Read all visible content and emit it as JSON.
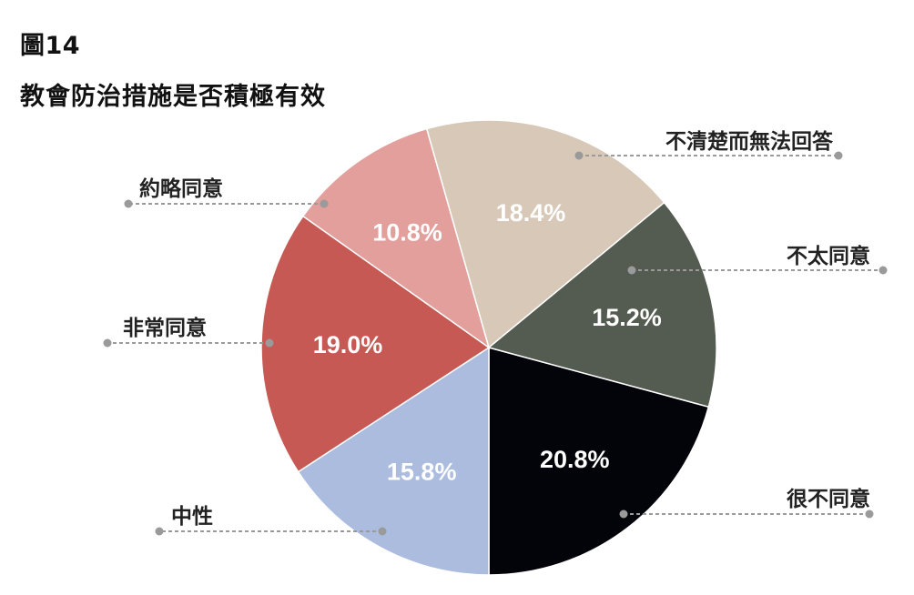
{
  "figure_label": "圖14",
  "chart_data": {
    "type": "pie",
    "title": "教會防治措施是否積極有效",
    "slices": [
      {
        "label": "很不同意",
        "value": 20.8,
        "display": "20.8%",
        "color": "#03030a"
      },
      {
        "label": "中性",
        "value": 15.8,
        "display": "15.8%",
        "color": "#abbcdf"
      },
      {
        "label": "非常同意",
        "value": 19.0,
        "display": "19.0%",
        "color": "#c75954"
      },
      {
        "label": "約略同意",
        "value": 10.8,
        "display": "10.8%",
        "color": "#e29f9c"
      },
      {
        "label": "不清楚而無法回答",
        "value": 18.4,
        "display": "18.4%",
        "color": "#d7c8b7"
      },
      {
        "label": "不太同意",
        "value": 15.2,
        "display": "15.2%",
        "color": "#545b50"
      }
    ],
    "start_direction": "bottom",
    "direction": "clockwise",
    "legend": "none (callout labels)"
  }
}
